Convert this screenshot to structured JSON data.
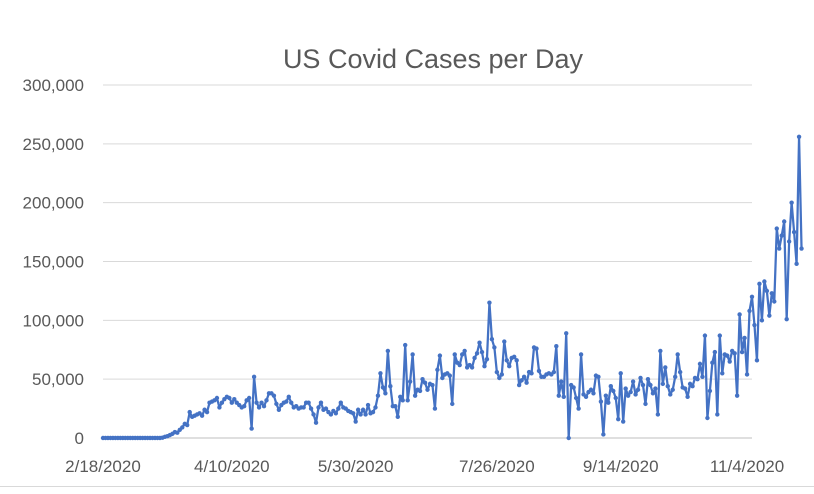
{
  "chart_data": {
    "type": "line",
    "title": "US Covid Cases per Day",
    "xlabel": "",
    "ylabel": "",
    "ylim": [
      0,
      300000
    ],
    "y_ticks": [
      0,
      50000,
      100000,
      150000,
      200000,
      250000,
      300000
    ],
    "y_tick_labels": [
      "0",
      "50,000",
      "100,000",
      "150,000",
      "200,000",
      "250,000",
      "300,000"
    ],
    "x_tick_labels": [
      "2/18/2020",
      "4/10/2020",
      "5/30/2020",
      "7/26/2020",
      "9/14/2020",
      "11/4/2020"
    ],
    "x_tick_positions": [
      0,
      52,
      102,
      159,
      209,
      260
    ],
    "x_range": [
      0,
      262
    ],
    "grid": true,
    "legend": "none",
    "markers": true,
    "color": "#4472c4",
    "series": [
      {
        "values": [
          0,
          0,
          0,
          0,
          0,
          0,
          0,
          0,
          0,
          0,
          0,
          0,
          0,
          0,
          0,
          0,
          0,
          0,
          0,
          0,
          0,
          0,
          0,
          0,
          300,
          1000,
          1500,
          2500,
          3500,
          5000,
          4500,
          7000,
          9000,
          12000,
          11000,
          22000,
          18000,
          19000,
          20000,
          21000,
          19000,
          24000,
          22000,
          30000,
          31000,
          32000,
          34000,
          26000,
          30000,
          33000,
          35000,
          34000,
          30000,
          33000,
          30000,
          28000,
          26000,
          27000,
          32000,
          34000,
          8000,
          52000,
          30000,
          26000,
          30000,
          27000,
          32000,
          38000,
          38000,
          36000,
          29000,
          24000,
          28000,
          30000,
          31000,
          35000,
          30000,
          26000,
          27000,
          25000,
          26000,
          26000,
          30000,
          30000,
          25000,
          20000,
          13000,
          26000,
          30000,
          24000,
          25000,
          22000,
          20000,
          23000,
          21000,
          25000,
          30000,
          26000,
          25000,
          23000,
          22000,
          21000,
          14000,
          24000,
          20000,
          24000,
          20000,
          28000,
          21000,
          22000,
          26000,
          36000,
          55000,
          43000,
          38000,
          74000,
          44000,
          27000,
          27000,
          18000,
          35000,
          32000,
          79000,
          32000,
          48000,
          71000,
          36000,
          41000,
          40000,
          50000,
          47000,
          41000,
          46000,
          45000,
          25000,
          58000,
          70000,
          51000,
          54000,
          55000,
          53000,
          29000,
          71000,
          64000,
          62000,
          71000,
          74000,
          60000,
          62000,
          60000,
          68000,
          72000,
          81000,
          73000,
          61000,
          67000,
          115000,
          84000,
          77000,
          56000,
          51000,
          54000,
          82000,
          66000,
          61000,
          68000,
          69000,
          66000,
          45000,
          49000,
          52000,
          47000,
          56000,
          55000,
          77000,
          76000,
          57000,
          52000,
          52000,
          54000,
          55000,
          54000,
          56000,
          78000,
          36000,
          48000,
          35000,
          89000,
          0,
          45000,
          43000,
          34000,
          25000,
          71000,
          37000,
          35000,
          39000,
          41000,
          38000,
          53000,
          52000,
          31000,
          3000,
          36000,
          30000,
          44000,
          40000,
          34000,
          16000,
          55000,
          14000,
          42000,
          36000,
          39000,
          48000,
          37000,
          41000,
          51000,
          45000,
          29000,
          50000,
          45000,
          38000,
          42000,
          20000,
          74000,
          46000,
          60000,
          44000,
          37000,
          41000,
          52000,
          71000,
          56000,
          43000,
          42000,
          35000,
          46000,
          44000,
          51000,
          50000,
          63000,
          52000,
          87000,
          17000,
          40000,
          64000,
          73000,
          20000,
          87000,
          55000,
          71000,
          70000,
          65000,
          74000,
          72000,
          36000,
          105000,
          73000,
          85000,
          54000,
          108000,
          120000,
          96000,
          66000,
          131000,
          100000,
          133000,
          125000,
          104000,
          123000,
          116000,
          178000,
          161000,
          172000,
          184000,
          101000,
          167000,
          200000,
          175000,
          148000,
          256000,
          161000
        ]
      }
    ]
  }
}
